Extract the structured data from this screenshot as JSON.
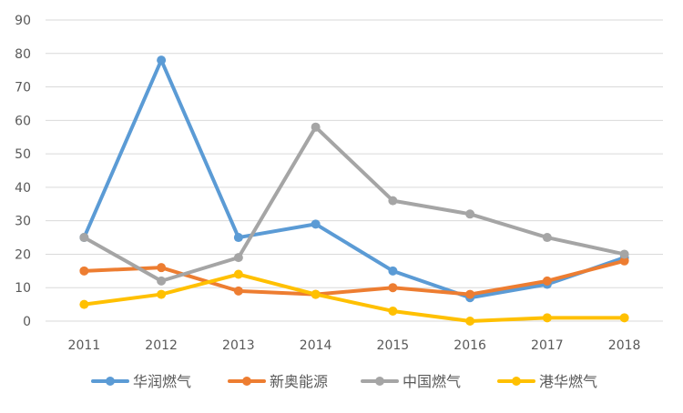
{
  "chart_data": {
    "type": "line",
    "title": "",
    "xlabel": "",
    "ylabel": "",
    "categories": [
      "2011",
      "2012",
      "2013",
      "2014",
      "2015",
      "2016",
      "2017",
      "2018"
    ],
    "ylim": [
      0,
      90
    ],
    "yticks": [
      0,
      10,
      20,
      30,
      40,
      50,
      60,
      70,
      80,
      90
    ],
    "grid": true,
    "legend_position": "bottom",
    "series": [
      {
        "name": "华润燃气",
        "color": "#5B9BD5",
        "values": [
          25,
          78,
          25,
          29,
          15,
          7,
          11,
          19
        ]
      },
      {
        "name": "新奥能源",
        "color": "#ED7D31",
        "values": [
          15,
          16,
          9,
          8,
          10,
          8,
          12,
          18
        ]
      },
      {
        "name": "中国燃气",
        "color": "#A5A5A5",
        "values": [
          25,
          12,
          19,
          58,
          36,
          32,
          25,
          20
        ]
      },
      {
        "name": "港华燃气",
        "color": "#FFC000",
        "values": [
          5,
          8,
          14,
          8,
          3,
          0,
          1,
          1
        ]
      }
    ]
  }
}
